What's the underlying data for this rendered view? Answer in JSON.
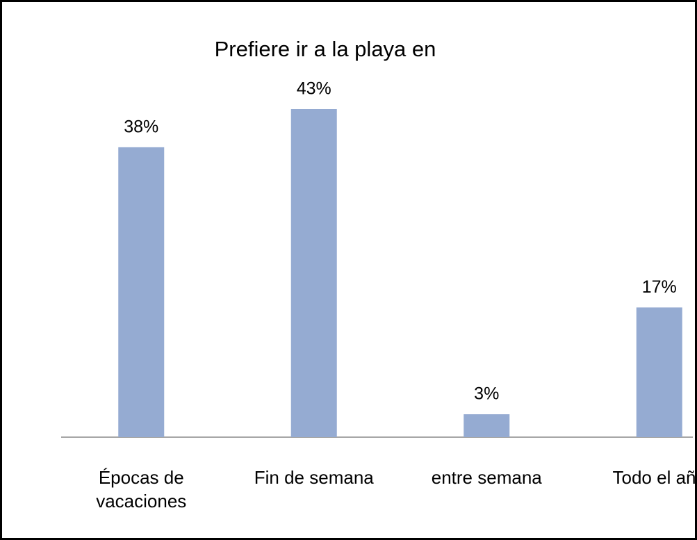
{
  "chart_data": {
    "type": "bar",
    "title": "Prefiere ir a la playa en",
    "categories": [
      "Épocas de vacaciones",
      "Fin de semana",
      "entre semana",
      "Todo el año"
    ],
    "values": [
      38,
      43,
      3,
      17
    ],
    "value_labels": [
      "38%",
      "43%",
      "3%",
      "17%"
    ],
    "color": "#95abd2"
  }
}
